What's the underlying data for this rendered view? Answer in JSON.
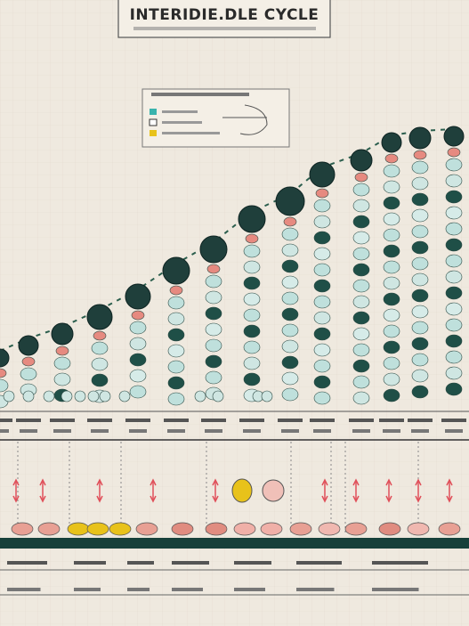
{
  "header": {
    "title": "INTERIDIE.DLE CYCLE"
  }
}
